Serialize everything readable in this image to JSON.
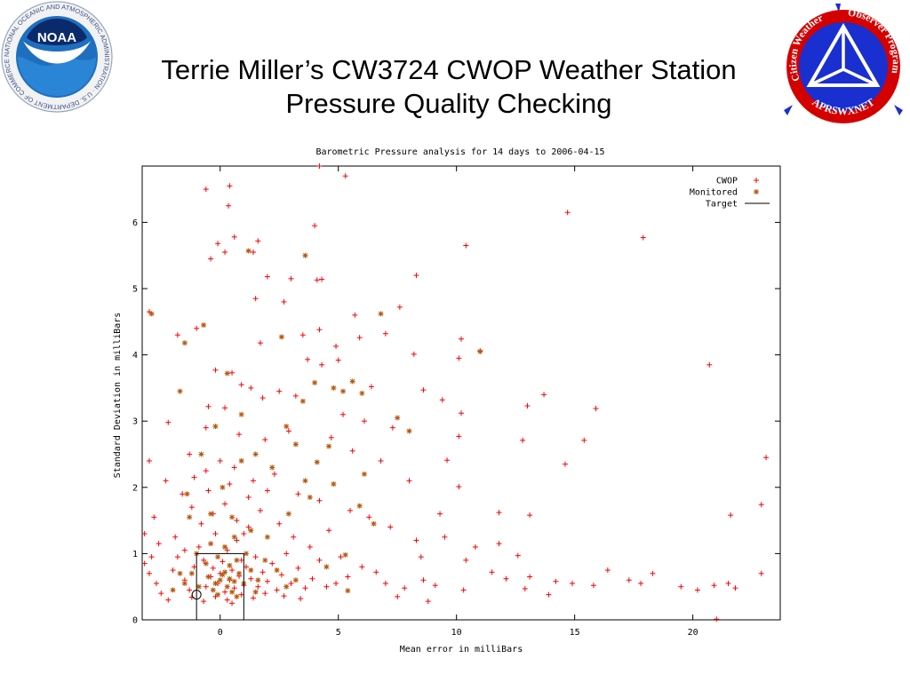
{
  "slide": {
    "title_line1": "Terrie Miller’s CW3724 CWOP Weather Station",
    "title_line2": "Pressure Quality Checking"
  },
  "logos": {
    "noaa": {
      "badge": "NOAA",
      "ring_text": "NATIONAL OCEANIC AND ATMOSPHERIC ADMINISTRATION · U.S. DEPARTMENT OF COMMERCE",
      "colors": {
        "ring": "#ffffff",
        "blue": "#1f6fbf",
        "navy": "#0b2a6b"
      }
    },
    "cwop": {
      "text_left": "Citizen Weather",
      "text_right": "Observer Program",
      "text_bottom": "APRSWXNET",
      "colors": {
        "red": "#d40000",
        "blue": "#1a2fd0",
        "white": "#ffffff"
      }
    }
  },
  "chart_data": {
    "type": "scatter",
    "title": "Barometric Pressure analysis for 14 days to 2006-04-15",
    "xlabel": "Mean error in milliBars",
    "ylabel": "Standard Deviation in milliBars",
    "xlim": [
      -3.3,
      23.7
    ],
    "ylim": [
      0,
      6.85
    ],
    "xticks": [
      0,
      5,
      10,
      15,
      20
    ],
    "yticks": [
      0,
      1,
      2,
      3,
      4,
      5,
      6
    ],
    "grid": false,
    "legend_position": "top-right",
    "series": [
      {
        "name": "CWOP",
        "marker": "plus",
        "color": "#ff0000",
        "points": [
          [
            -0.6,
            6.5
          ],
          [
            0.4,
            6.55
          ],
          [
            0.35,
            6.25
          ],
          [
            4.2,
            6.85
          ],
          [
            5.3,
            6.7
          ],
          [
            0.6,
            5.78
          ],
          [
            -0.1,
            5.68
          ],
          [
            0.2,
            5.55
          ],
          [
            -0.4,
            5.45
          ],
          [
            1.6,
            5.72
          ],
          [
            1.4,
            5.55
          ],
          [
            4.0,
            5.95
          ],
          [
            2.0,
            5.18
          ],
          [
            3.0,
            5.15
          ],
          [
            4.1,
            5.13
          ],
          [
            4.3,
            5.14
          ],
          [
            8.3,
            5.2
          ],
          [
            10.4,
            5.65
          ],
          [
            14.7,
            6.15
          ],
          [
            17.9,
            5.77
          ],
          [
            1.5,
            4.85
          ],
          [
            2.7,
            4.8
          ],
          [
            5.7,
            4.6
          ],
          [
            7.0,
            4.32
          ],
          [
            7.6,
            4.72
          ],
          [
            3.5,
            4.3
          ],
          [
            4.2,
            4.38
          ],
          [
            5.9,
            4.26
          ],
          [
            8.2,
            4.01
          ],
          [
            10.2,
            4.24
          ],
          [
            -1.8,
            4.3
          ],
          [
            -1.0,
            4.4
          ],
          [
            -3.0,
            4.65
          ],
          [
            1.7,
            4.18
          ],
          [
            4.9,
            4.13
          ],
          [
            3.7,
            3.93
          ],
          [
            4.3,
            3.85
          ],
          [
            5.0,
            3.92
          ],
          [
            10.1,
            3.95
          ],
          [
            11.0,
            4.06
          ],
          [
            -0.2,
            3.77
          ],
          [
            0.5,
            3.73
          ],
          [
            1.3,
            3.5
          ],
          [
            0.9,
            3.55
          ],
          [
            6.4,
            3.52
          ],
          [
            8.6,
            3.47
          ],
          [
            9.4,
            3.32
          ],
          [
            13.0,
            3.23
          ],
          [
            13.7,
            3.4
          ],
          [
            15.9,
            3.19
          ],
          [
            0.2,
            3.2
          ],
          [
            -0.5,
            3.22
          ],
          [
            1.8,
            3.35
          ],
          [
            2.5,
            3.45
          ],
          [
            3.2,
            3.38
          ],
          [
            5.2,
            3.1
          ],
          [
            6.1,
            3.0
          ],
          [
            7.3,
            2.9
          ],
          [
            10.2,
            3.12
          ],
          [
            12.8,
            2.71
          ],
          [
            -2.2,
            2.98
          ],
          [
            -0.6,
            2.9
          ],
          [
            0.8,
            2.8
          ],
          [
            1.9,
            2.72
          ],
          [
            2.9,
            2.85
          ],
          [
            4.7,
            2.75
          ],
          [
            5.6,
            2.55
          ],
          [
            6.8,
            2.4
          ],
          [
            8.0,
            2.1
          ],
          [
            10.1,
            2.77
          ],
          [
            15.4,
            2.71
          ],
          [
            14.6,
            2.35
          ],
          [
            9.6,
            2.41
          ],
          [
            10.1,
            2.01
          ],
          [
            11.8,
            1.62
          ],
          [
            13.1,
            1.58
          ],
          [
            21.6,
            1.58
          ],
          [
            22.9,
            1.74
          ],
          [
            23.1,
            2.45
          ],
          [
            20.7,
            3.85
          ],
          [
            -3.0,
            2.4
          ],
          [
            -2.3,
            2.1
          ],
          [
            -1.6,
            1.9
          ],
          [
            -2.8,
            1.55
          ],
          [
            -3.2,
            1.3
          ],
          [
            -1.3,
            2.5
          ],
          [
            2.3,
            2.2
          ],
          [
            3.3,
            1.9
          ],
          [
            4.2,
            1.8
          ],
          [
            5.5,
            1.65
          ],
          [
            6.3,
            1.55
          ],
          [
            7.2,
            1.4
          ],
          [
            8.3,
            1.2
          ],
          [
            9.3,
            1.6
          ],
          [
            8.5,
            0.95
          ],
          [
            9.5,
            1.25
          ],
          [
            10.8,
            1.1
          ],
          [
            10.4,
            0.9
          ],
          [
            11.8,
            1.15
          ],
          [
            12.6,
            0.97
          ],
          [
            11.5,
            0.72
          ],
          [
            12.1,
            0.62
          ],
          [
            13.1,
            0.65
          ],
          [
            14.2,
            0.58
          ],
          [
            14.9,
            0.55
          ],
          [
            15.8,
            0.52
          ],
          [
            16.4,
            0.75
          ],
          [
            17.3,
            0.6
          ],
          [
            17.8,
            0.55
          ],
          [
            18.3,
            0.7
          ],
          [
            19.5,
            0.5
          ],
          [
            20.2,
            0.45
          ],
          [
            20.9,
            0.52
          ],
          [
            21.5,
            0.55
          ],
          [
            21.8,
            0.48
          ],
          [
            22.9,
            0.7
          ],
          [
            21.0,
            0.01
          ],
          [
            12.9,
            0.47
          ],
          [
            13.9,
            0.38
          ],
          [
            10.3,
            0.45
          ],
          [
            9.1,
            0.52
          ],
          [
            8.6,
            0.6
          ],
          [
            7.8,
            0.48
          ],
          [
            7.0,
            0.55
          ],
          [
            6.6,
            0.72
          ],
          [
            6.0,
            0.8
          ],
          [
            5.4,
            0.65
          ],
          [
            4.9,
            0.55
          ],
          [
            8.8,
            0.28
          ],
          [
            7.5,
            0.35
          ],
          [
            -3.2,
            0.85
          ],
          [
            -3.0,
            0.7
          ],
          [
            -2.7,
            0.55
          ],
          [
            -2.5,
            0.4
          ],
          [
            -2.2,
            0.3
          ],
          [
            -2.0,
            0.75
          ],
          [
            -1.8,
            0.95
          ],
          [
            -1.5,
            0.6
          ],
          [
            -1.3,
            0.45
          ],
          [
            -1.1,
            0.8
          ],
          [
            -0.9,
            1.1
          ],
          [
            -0.7,
            0.9
          ],
          [
            -0.6,
            0.5
          ],
          [
            -0.4,
            0.65
          ],
          [
            -0.3,
            0.78
          ],
          [
            -0.2,
            1.3
          ],
          [
            -0.1,
            0.55
          ],
          [
            0.0,
            0.7
          ],
          [
            0.1,
            0.88
          ],
          [
            0.2,
            0.42
          ],
          [
            0.3,
            1.05
          ],
          [
            0.4,
            0.6
          ],
          [
            0.5,
            0.75
          ],
          [
            0.6,
            0.48
          ],
          [
            0.7,
            1.2
          ],
          [
            0.8,
            0.66
          ],
          [
            0.9,
            0.9
          ],
          [
            1.0,
            0.52
          ],
          [
            1.1,
            0.8
          ],
          [
            1.2,
            1.4
          ],
          [
            1.3,
            0.62
          ],
          [
            1.5,
            0.95
          ],
          [
            1.6,
            0.5
          ],
          [
            1.8,
            0.72
          ],
          [
            2.0,
            0.58
          ],
          [
            2.2,
            0.85
          ],
          [
            2.4,
            0.45
          ],
          [
            2.6,
            0.68
          ],
          [
            2.8,
            1.0
          ],
          [
            3.0,
            0.55
          ],
          [
            3.3,
            0.78
          ],
          [
            3.6,
            0.48
          ],
          [
            3.9,
            0.62
          ],
          [
            4.2,
            0.9
          ],
          [
            4.5,
            0.5
          ],
          [
            -0.8,
            1.45
          ],
          [
            -0.3,
            1.6
          ],
          [
            0.2,
            1.75
          ],
          [
            0.7,
            1.5
          ],
          [
            1.2,
            1.85
          ],
          [
            -1.2,
            1.7
          ],
          [
            -0.5,
            1.95
          ],
          [
            0.4,
            2.05
          ],
          [
            1.0,
            1.3
          ],
          [
            1.7,
            1.65
          ],
          [
            2.5,
            1.45
          ],
          [
            3.1,
            1.25
          ],
          [
            3.8,
            1.1
          ],
          [
            4.6,
            1.35
          ],
          [
            5.1,
            0.95
          ],
          [
            -0.6,
            2.25
          ],
          [
            0.0,
            2.4
          ],
          [
            0.6,
            2.3
          ],
          [
            -1.1,
            2.15
          ],
          [
            1.4,
            2.1
          ],
          [
            2.0,
            1.95
          ],
          [
            -2.6,
            1.15
          ],
          [
            -2.9,
            0.95
          ],
          [
            -1.9,
            1.25
          ],
          [
            -1.5,
            1.05
          ],
          [
            -0.2,
            0.35
          ],
          [
            0.3,
            0.3
          ],
          [
            0.9,
            0.38
          ],
          [
            1.4,
            0.33
          ],
          [
            -0.7,
            0.28
          ],
          [
            -1.2,
            0.34
          ],
          [
            0.5,
            0.25
          ],
          [
            1.9,
            0.4
          ],
          [
            2.7,
            0.36
          ],
          [
            3.4,
            0.32
          ]
        ]
      },
      {
        "name": "Monitored",
        "marker": "star",
        "color": "#b5560a",
        "points": [
          [
            -2.9,
            4.62
          ],
          [
            -0.7,
            4.45
          ],
          [
            -1.5,
            4.18
          ],
          [
            1.2,
            5.57
          ],
          [
            3.6,
            5.5
          ],
          [
            6.8,
            4.62
          ],
          [
            11.0,
            4.05
          ],
          [
            2.6,
            4.27
          ],
          [
            -1.7,
            3.45
          ],
          [
            0.3,
            3.72
          ],
          [
            4.0,
            3.58
          ],
          [
            4.8,
            3.5
          ],
          [
            5.6,
            3.6
          ],
          [
            5.2,
            3.45
          ],
          [
            6.0,
            3.42
          ],
          [
            7.5,
            3.05
          ],
          [
            8.0,
            2.85
          ],
          [
            3.5,
            3.3
          ],
          [
            2.8,
            2.92
          ],
          [
            4.6,
            2.62
          ],
          [
            0.9,
            3.1
          ],
          [
            -0.2,
            2.92
          ],
          [
            -0.8,
            2.5
          ],
          [
            1.5,
            2.5
          ],
          [
            2.2,
            2.3
          ],
          [
            3.6,
            2.1
          ],
          [
            4.1,
            2.38
          ],
          [
            4.8,
            2.05
          ],
          [
            6.1,
            2.2
          ],
          [
            0.1,
            2.0
          ],
          [
            -0.4,
            1.6
          ],
          [
            -1.4,
            1.9
          ],
          [
            0.5,
            1.55
          ],
          [
            1.3,
            1.35
          ],
          [
            2.0,
            1.25
          ],
          [
            2.9,
            1.6
          ],
          [
            3.8,
            1.85
          ],
          [
            5.3,
            0.98
          ],
          [
            4.5,
            0.8
          ],
          [
            3.2,
            0.6
          ],
          [
            -0.5,
            0.65
          ],
          [
            -0.2,
            0.55
          ],
          [
            0.0,
            0.6
          ],
          [
            0.1,
            0.68
          ],
          [
            0.3,
            0.5
          ],
          [
            0.4,
            0.62
          ],
          [
            0.6,
            0.58
          ],
          [
            0.2,
            0.72
          ],
          [
            -0.3,
            0.45
          ],
          [
            0.5,
            0.42
          ],
          [
            0.8,
            0.7
          ],
          [
            1.0,
            0.55
          ],
          [
            1.3,
            0.75
          ],
          [
            1.6,
            0.6
          ],
          [
            1.9,
            0.9
          ],
          [
            -0.9,
            0.5
          ],
          [
            -1.2,
            0.7
          ],
          [
            -0.6,
            0.85
          ],
          [
            -1.5,
            0.55
          ],
          [
            -1.0,
            1.0
          ],
          [
            0.2,
            1.1
          ],
          [
            0.6,
            1.25
          ],
          [
            -0.4,
            1.15
          ],
          [
            1.1,
            1.0
          ],
          [
            0.7,
            0.9
          ],
          [
            -0.1,
            0.95
          ],
          [
            0.4,
            0.82
          ],
          [
            2.4,
            0.75
          ],
          [
            2.8,
            0.5
          ],
          [
            5.4,
            0.44
          ],
          [
            -1.7,
            0.7
          ],
          [
            -2.0,
            0.45
          ],
          [
            -0.1,
            0.38
          ],
          [
            0.7,
            0.35
          ],
          [
            1.5,
            0.42
          ],
          [
            6.5,
            1.45
          ],
          [
            5.9,
            1.72
          ],
          [
            -1.3,
            1.55
          ],
          [
            0.9,
            2.4
          ],
          [
            3.2,
            2.65
          ]
        ]
      }
    ],
    "legend": [
      "CWOP",
      "Monitored",
      "Target"
    ],
    "target": {
      "name": "Target",
      "box": {
        "xmin": -1.0,
        "xmax": 1.0,
        "ymin": 0,
        "ymax": 1.0
      },
      "circle": {
        "x": -1.0,
        "y": 0.38
      }
    }
  }
}
